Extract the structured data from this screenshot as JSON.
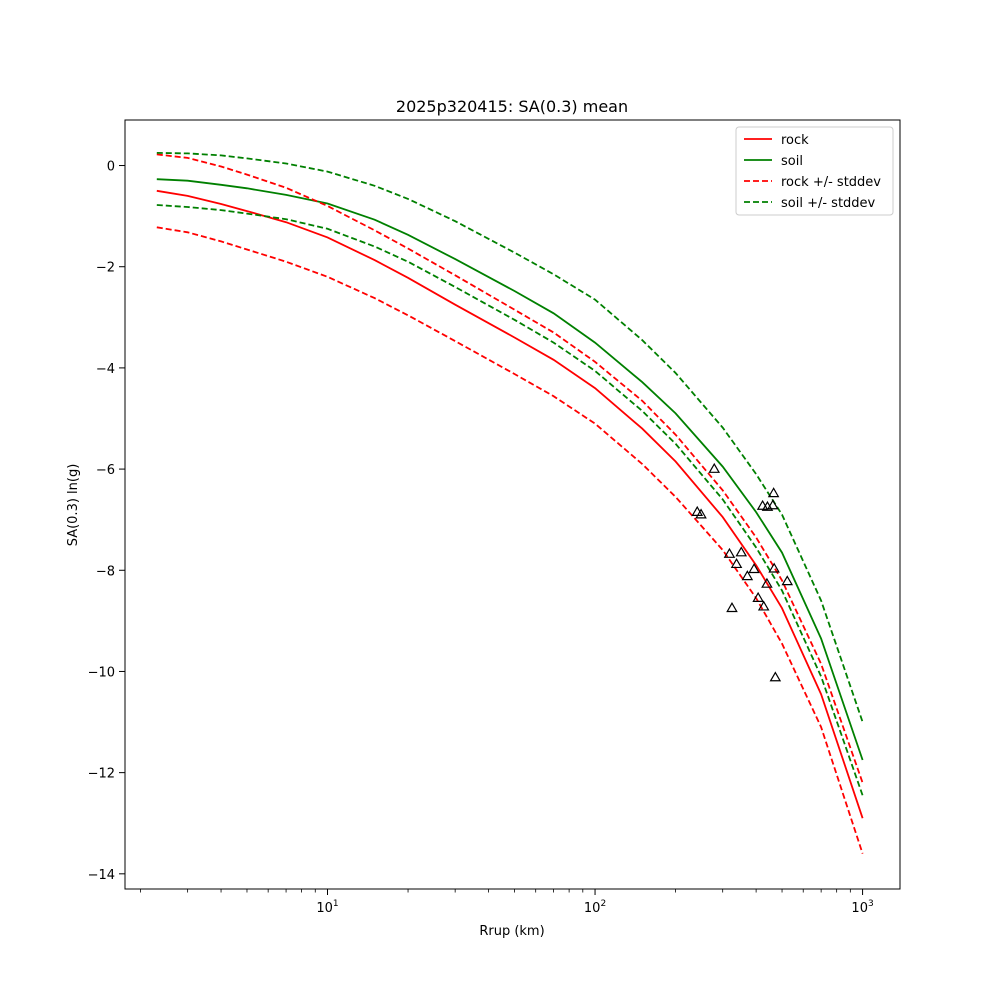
{
  "chart_data": {
    "type": "line",
    "title": "2025p320415: SA(0.3) mean",
    "xlabel": "Rrup (km)",
    "ylabel": "SA(0.3) ln(g)",
    "xscale": "log",
    "xlim": [
      1.75,
      1380
    ],
    "ylim": [
      -14.3,
      0.9
    ],
    "grid": false,
    "legend_position": "top-right",
    "x_ticks": [
      {
        "value": 10,
        "base": "10",
        "exp": "1"
      },
      {
        "value": 100,
        "base": "10",
        "exp": "2"
      },
      {
        "value": 1000,
        "base": "10",
        "exp": "3"
      }
    ],
    "y_ticks": [
      {
        "value": 0,
        "label": "0"
      },
      {
        "value": -2,
        "label": "−2"
      },
      {
        "value": -4,
        "label": "−4"
      },
      {
        "value": -6,
        "label": "−6"
      },
      {
        "value": -8,
        "label": "−8"
      },
      {
        "value": -10,
        "label": "−10"
      },
      {
        "value": -12,
        "label": "−12"
      },
      {
        "value": -14,
        "label": "−14"
      }
    ],
    "x": [
      2.3,
      3,
      4,
      5,
      7,
      10,
      15,
      20,
      30,
      50,
      70,
      100,
      150,
      200,
      300,
      400,
      500,
      700,
      1000
    ],
    "series": [
      {
        "name": "rock",
        "color": "#ff0000",
        "style": "solid",
        "values": [
          -0.5,
          -0.6,
          -0.76,
          -0.9,
          -1.12,
          -1.42,
          -1.87,
          -2.22,
          -2.75,
          -3.4,
          -3.84,
          -4.4,
          -5.2,
          -5.85,
          -6.95,
          -7.9,
          -8.75,
          -10.45,
          -12.9
        ]
      },
      {
        "name": "soil",
        "color": "#008000",
        "style": "solid",
        "values": [
          -0.27,
          -0.3,
          -0.38,
          -0.45,
          -0.58,
          -0.75,
          -1.07,
          -1.37,
          -1.85,
          -2.48,
          -2.92,
          -3.5,
          -4.28,
          -4.9,
          -5.95,
          -6.85,
          -7.65,
          -9.35,
          -11.75
        ]
      },
      {
        "name": "rock +/- stddev",
        "color": "#ff0000",
        "style": "dashed",
        "legend": true,
        "values": [
          0.22,
          0.15,
          -0.02,
          -0.18,
          -0.44,
          -0.8,
          -1.28,
          -1.64,
          -2.17,
          -2.85,
          -3.3,
          -3.88,
          -4.65,
          -5.32,
          -6.42,
          -7.35,
          -8.2,
          -9.85,
          -12.2
        ]
      },
      {
        "name": "rock +/- stddev",
        "color": "#ff0000",
        "style": "dashed",
        "legend": false,
        "values": [
          -1.22,
          -1.32,
          -1.5,
          -1.66,
          -1.9,
          -2.2,
          -2.62,
          -2.96,
          -3.47,
          -4.12,
          -4.56,
          -5.1,
          -5.9,
          -6.55,
          -7.6,
          -8.55,
          -9.45,
          -11.1,
          -13.6
        ]
      },
      {
        "name": "soil +/- stddev",
        "color": "#008000",
        "style": "dashed",
        "legend": true,
        "values": [
          0.25,
          0.24,
          0.2,
          0.14,
          0.04,
          -0.12,
          -0.4,
          -0.66,
          -1.1,
          -1.72,
          -2.15,
          -2.65,
          -3.45,
          -4.1,
          -5.18,
          -6.1,
          -6.9,
          -8.6,
          -11.0
        ]
      },
      {
        "name": "soil +/- stddev",
        "color": "#008000",
        "style": "dashed",
        "legend": false,
        "values": [
          -0.78,
          -0.82,
          -0.88,
          -0.95,
          -1.06,
          -1.25,
          -1.6,
          -1.9,
          -2.4,
          -3.05,
          -3.5,
          -4.06,
          -4.85,
          -5.5,
          -6.6,
          -7.55,
          -8.4,
          -10.1,
          -12.45
        ]
      }
    ],
    "observations": {
      "marker": "triangle",
      "points": [
        {
          "x": 241,
          "y": -6.85
        },
        {
          "x": 249,
          "y": -6.9
        },
        {
          "x": 279,
          "y": -6.0
        },
        {
          "x": 318,
          "y": -7.68
        },
        {
          "x": 325,
          "y": -8.75
        },
        {
          "x": 338,
          "y": -7.88
        },
        {
          "x": 352,
          "y": -7.65
        },
        {
          "x": 371,
          "y": -8.12
        },
        {
          "x": 393,
          "y": -7.98
        },
        {
          "x": 407,
          "y": -8.55
        },
        {
          "x": 423,
          "y": -6.73
        },
        {
          "x": 427,
          "y": -8.72
        },
        {
          "x": 439,
          "y": -8.27
        },
        {
          "x": 441,
          "y": -6.75
        },
        {
          "x": 462,
          "y": -6.72
        },
        {
          "x": 465,
          "y": -6.48
        },
        {
          "x": 467,
          "y": -7.97
        },
        {
          "x": 472,
          "y": -10.12
        },
        {
          "x": 523,
          "y": -8.22
        }
      ]
    }
  }
}
